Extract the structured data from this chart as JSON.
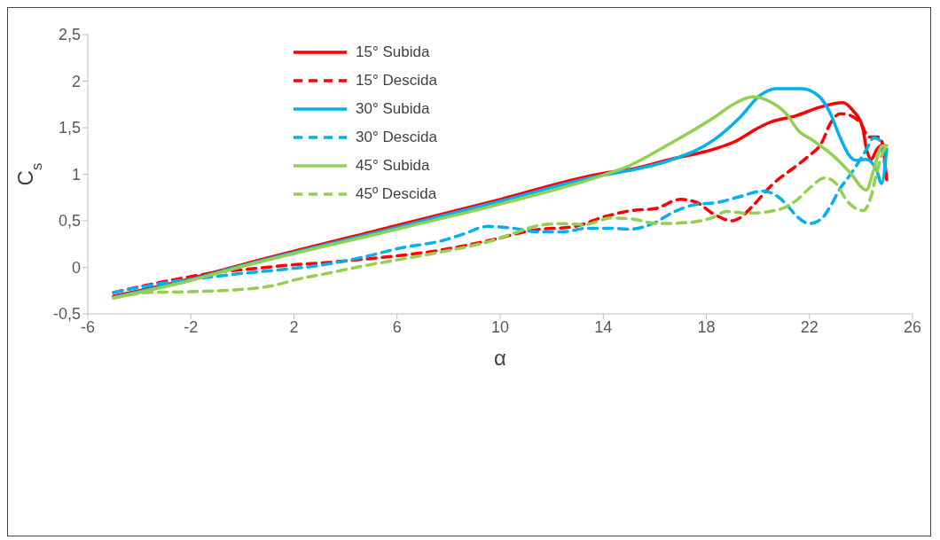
{
  "chart_data": {
    "type": "line",
    "xlabel": "α",
    "ylabel": "C$_{s}$",
    "xlim": [
      -6,
      26
    ],
    "xticks": [
      -6,
      -2,
      2,
      6,
      10,
      14,
      18,
      22,
      26
    ],
    "ylim": [
      -0.5,
      2.5
    ],
    "yticks": [
      {
        "value": -0.5,
        "label": "-0,5"
      },
      0,
      {
        "value": 0.5,
        "label": "0,5"
      },
      1,
      {
        "value": 1.5,
        "label": "1,5"
      },
      2,
      {
        "value": 2.5,
        "label": "2,5"
      }
    ],
    "legend": "top left",
    "marker": "none",
    "series": [
      {
        "name": "15° Subida",
        "color": "#ff0000",
        "line_style": "solid",
        "x": [
          -5,
          -2,
          0,
          6,
          10,
          14,
          15,
          16.6,
          18.3,
          19.1,
          19.9,
          20.4,
          21.5,
          22.4,
          23.3,
          23.7,
          24.06,
          24.2,
          24.4,
          24.6,
          24.8,
          25
        ],
        "values": [
          -0.31,
          -0.12,
          0.03,
          0.45,
          0.73,
          1.01,
          1.05,
          1.16,
          1.27,
          1.35,
          1.48,
          1.55,
          1.63,
          1.72,
          1.77,
          1.68,
          1.51,
          1.29,
          1.16,
          1.26,
          1.31,
          0.94
        ]
      },
      {
        "name": "15° Descida",
        "color": "#ff0000",
        "line_style": "dashed",
        "x": [
          -5,
          -2.6,
          -0.9,
          0.2,
          2.1,
          3.2,
          4.8,
          5.9,
          7.8,
          9.6,
          11.3,
          12.9,
          14,
          15.1,
          16,
          17,
          17.6,
          18.3,
          19,
          19.3,
          19.8,
          20.6,
          21.3,
          21.9,
          22.5,
          22.8,
          23.2,
          23.6,
          24,
          24.3,
          24.7,
          24.95
        ],
        "values": [
          -0.27,
          -0.13,
          -0.05,
          -0.02,
          0.03,
          0.05,
          0.09,
          0.12,
          0.19,
          0.29,
          0.4,
          0.44,
          0.54,
          0.61,
          0.63,
          0.73,
          0.7,
          0.57,
          0.5,
          0.53,
          0.66,
          0.9,
          1.05,
          1.18,
          1.35,
          1.54,
          1.65,
          1.63,
          1.54,
          1.4,
          1.4,
          1.2
        ]
      },
      {
        "name": "30° Subida",
        "color": "#00b0f0",
        "line_style": "solid",
        "x": [
          -5,
          -2,
          0,
          6,
          10,
          14,
          15,
          16.6,
          18.3,
          19.3,
          20.1,
          20.7,
          21.7,
          22.4,
          22.8,
          23.2,
          23.5,
          23.8,
          24.2,
          24.6,
          24.8,
          25
        ],
        "values": [
          -0.32,
          -0.13,
          0.02,
          0.43,
          0.71,
          0.99,
          1.04,
          1.15,
          1.37,
          1.61,
          1.85,
          1.92,
          1.92,
          1.83,
          1.66,
          1.39,
          1.22,
          1.15,
          1.16,
          1.05,
          0.9,
          1.27
        ]
      },
      {
        "name": "30° Descida",
        "color": "#00b0f0",
        "line_style": "dashed",
        "x": [
          -5,
          -2.6,
          -1.4,
          -0.2,
          1.3,
          3.2,
          5,
          6,
          7.8,
          8.6,
          9.5,
          10.5,
          11.5,
          12.4,
          13.4,
          14.3,
          15,
          16,
          16.7,
          17.5,
          18.5,
          19.3,
          20.2,
          20.6,
          21.1,
          21.5,
          22,
          22.5,
          22.8,
          23.2,
          23.6,
          24.2,
          24.5,
          24.7,
          24.95
        ],
        "values": [
          -0.27,
          -0.15,
          -0.11,
          -0.07,
          -0.03,
          0.03,
          0.13,
          0.2,
          0.29,
          0.36,
          0.44,
          0.42,
          0.38,
          0.38,
          0.42,
          0.42,
          0.41,
          0.48,
          0.59,
          0.67,
          0.7,
          0.76,
          0.82,
          0.79,
          0.68,
          0.55,
          0.47,
          0.53,
          0.65,
          0.85,
          1,
          1.26,
          1.39,
          1.37,
          1.05
        ]
      },
      {
        "name": "45° Subida",
        "color": "#92d050",
        "line_style": "solid",
        "x": [
          -5,
          -2,
          0,
          6,
          10,
          14,
          15,
          16.6,
          18.3,
          19.1,
          19.8,
          20.4,
          21.1,
          21.6,
          22.1,
          23,
          23.6,
          24.2,
          24.5,
          24.8,
          25
        ],
        "values": [
          -0.33,
          -0.14,
          0.01,
          0.41,
          0.68,
          0.99,
          1.09,
          1.33,
          1.61,
          1.76,
          1.83,
          1.79,
          1.65,
          1.46,
          1.37,
          1.18,
          1.01,
          0.83,
          1.05,
          1.3,
          1.31
        ]
      },
      {
        "name": "45º Descida",
        "color": "#92d050",
        "line_style": "dashed",
        "x": [
          -5,
          -3.6,
          -1.7,
          -0.2,
          1.3,
          2.1,
          3.2,
          4.6,
          6,
          7.8,
          9.6,
          10.6,
          11.5,
          12.4,
          13.3,
          14.3,
          15.1,
          16.1,
          17.2,
          18.2,
          18.8,
          19.6,
          20.8,
          21.5,
          22,
          22.6,
          23,
          23.5,
          24.1,
          24.4,
          24.6,
          24.8,
          25
        ],
        "values": [
          -0.33,
          -0.27,
          -0.26,
          -0.24,
          -0.19,
          -0.13,
          -0.07,
          0.01,
          0.08,
          0.17,
          0.28,
          0.37,
          0.45,
          0.47,
          0.46,
          0.53,
          0.52,
          0.47,
          0.48,
          0.53,
          0.6,
          0.58,
          0.62,
          0.72,
          0.85,
          0.96,
          0.91,
          0.7,
          0.61,
          0.77,
          1,
          1.2,
          1.31
        ]
      }
    ]
  }
}
